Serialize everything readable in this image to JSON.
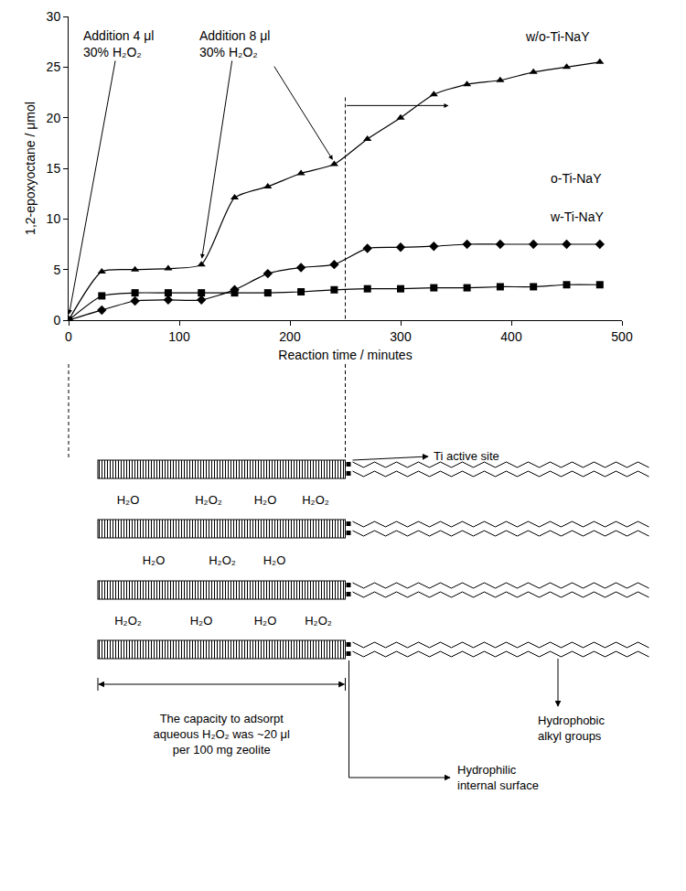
{
  "chart_data": {
    "type": "line",
    "x_label": "Reaction time / minutes",
    "y_label": "1,2-epoxyoctane / μmol",
    "xlim": [
      0,
      500
    ],
    "xticks": [
      0,
      100,
      200,
      300,
      400,
      500
    ],
    "ylim": [
      0,
      30
    ],
    "yticks": [
      0,
      5,
      10,
      15,
      20,
      25,
      30
    ],
    "grid": false,
    "x": [
      0,
      30,
      60,
      90,
      120,
      150,
      180,
      210,
      240,
      270,
      300,
      330,
      360,
      390,
      420,
      450,
      480
    ],
    "series": [
      {
        "name": "w/o-Ti-NaY",
        "color": "#000000",
        "marker": "triangle-up",
        "line_style": "spline",
        "values": [
          0,
          4.8,
          5.0,
          5.1,
          5.5,
          12.1,
          13.2,
          14.5,
          15.4,
          17.9,
          20.0,
          22.3,
          23.3,
          23.7,
          24.5,
          25.0,
          25.5
        ]
      },
      {
        "name": "o-Ti-NaY",
        "color": "#000000",
        "marker": "diamond",
        "line_style": "spline",
        "values": [
          0,
          1.0,
          1.9,
          2.0,
          2.0,
          3.0,
          4.6,
          5.2,
          5.5,
          7.1,
          7.2,
          7.3,
          7.5,
          7.5,
          7.5,
          7.5,
          7.5
        ]
      },
      {
        "name": "w-Ti-NaY",
        "color": "#000000",
        "marker": "square",
        "line_style": "spline",
        "values": [
          0,
          2.4,
          2.7,
          2.7,
          2.7,
          2.7,
          2.7,
          2.8,
          3.0,
          3.1,
          3.1,
          3.2,
          3.2,
          3.3,
          3.3,
          3.5,
          3.5
        ]
      }
    ],
    "annotations": [
      {
        "lines": [
          "Addition 4 μl",
          "30% H₂O₂"
        ],
        "points_to": [
          {
            "x": 0,
            "y": 0.3
          }
        ]
      },
      {
        "lines": [
          "Addition 8 μl",
          "30% H₂O₂"
        ],
        "points_to": [
          {
            "x": 120,
            "y": 5.8
          },
          {
            "x": 240,
            "y": 15.6
          }
        ]
      }
    ],
    "reference_lines": [
      {
        "x": 250,
        "y": 22
      },
      {
        "x": 0,
        "y": 0
      }
    ],
    "capacity_arrow": {
      "x": [
        250,
        345
      ],
      "y": 21.2
    }
  },
  "diagram": {
    "molecules": [
      [
        "H₂O",
        "H₂O₂",
        "H₂O",
        "H₂O₂"
      ],
      [
        "H₂O",
        "H₂O₂",
        "H₂O"
      ],
      [
        "H₂O₂",
        "H₂O",
        "H₂O",
        "H₂O₂"
      ]
    ],
    "ti_site_label": "Ti active site",
    "alkyl_label": [
      "Hydrophobic",
      "alkyl groups"
    ],
    "surface_label": [
      "Hydrophilic",
      "internal surface"
    ],
    "capacity_label": [
      "The capacity to adsorpt",
      "aqueous H₂O₂ was ~20 μl",
      "per 100 mg zeolite"
    ]
  }
}
